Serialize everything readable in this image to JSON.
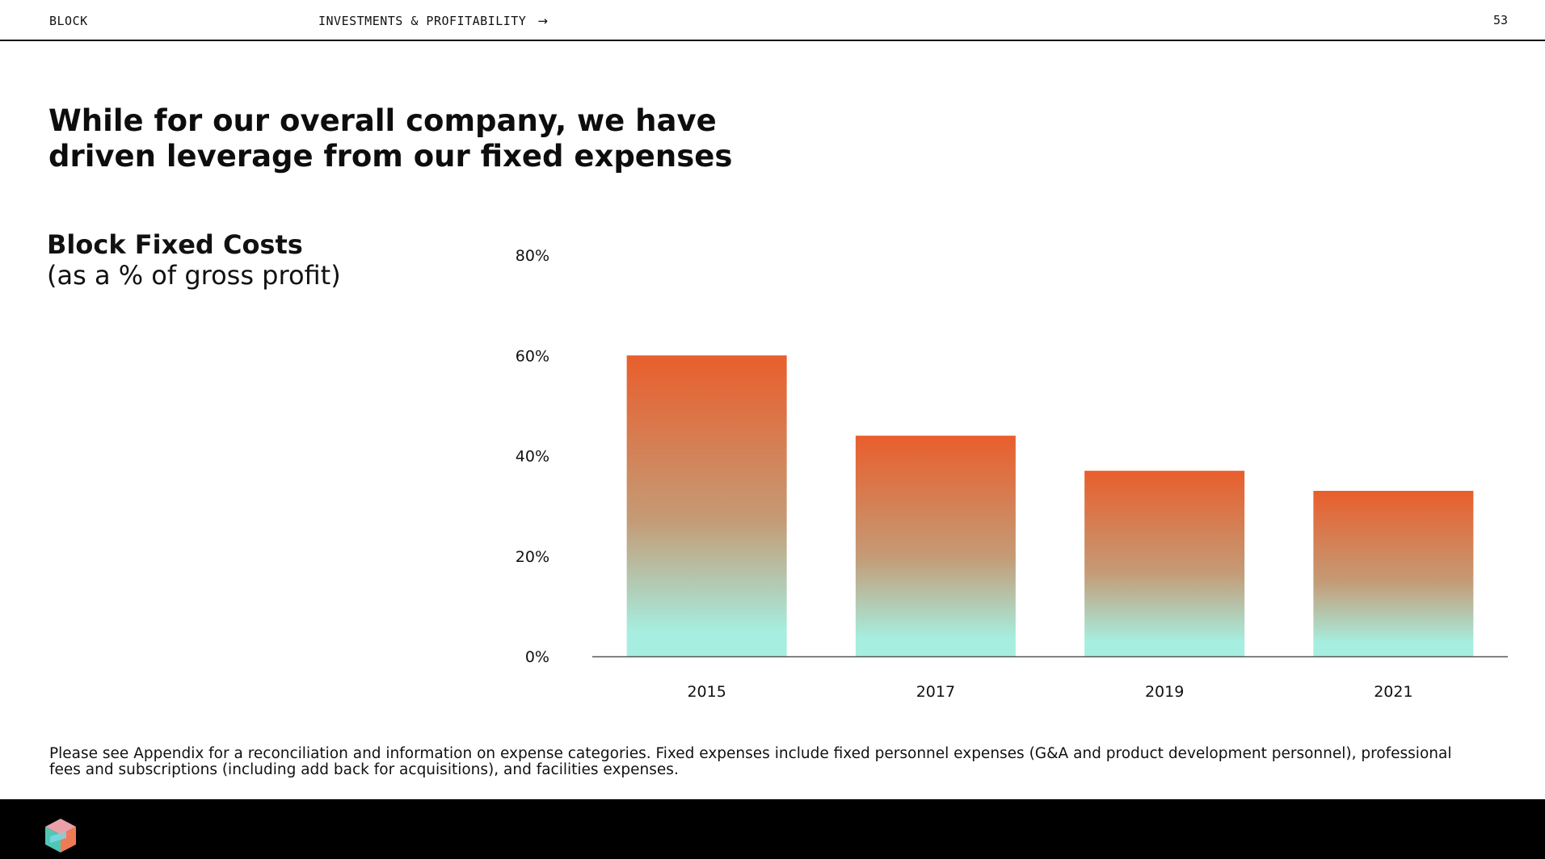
{
  "header": {
    "brand": "BLOCK",
    "section": "INVESTMENTS & PROFITABILITY",
    "arrow": "→",
    "page_number": "53"
  },
  "headline": "While for our overall company, we have driven leverage from our fixed expenses",
  "chart_heading": {
    "title": "Block Fixed Costs",
    "subtitle": "(as a % of gross profit)"
  },
  "footnote": "Please see Appendix for a reconciliation and information on expense categories. Fixed expenses include fixed personnel expenses (G&A and product development personnel), professional fees and subscriptions (including add back for acquisitions), and facilities expenses.",
  "colors": {
    "bar_top": "#e95e2c",
    "bar_bottom": "#a6eee0",
    "footer": "#000000"
  },
  "logo_icon": "block-logo-icon",
  "chart_data": {
    "type": "bar",
    "title": "Block Fixed Costs",
    "subtitle": "(as a % of gross profit)",
    "categories": [
      "2015",
      "2017",
      "2019",
      "2021"
    ],
    "values": [
      60,
      44,
      37,
      33
    ],
    "unit": "%",
    "ylim": [
      0,
      80
    ],
    "yticks": [
      0,
      20,
      40,
      60,
      80
    ],
    "ytick_labels": [
      "0%",
      "20%",
      "40%",
      "60%",
      "80%"
    ],
    "grid": false,
    "xlabel": "",
    "ylabel": ""
  }
}
